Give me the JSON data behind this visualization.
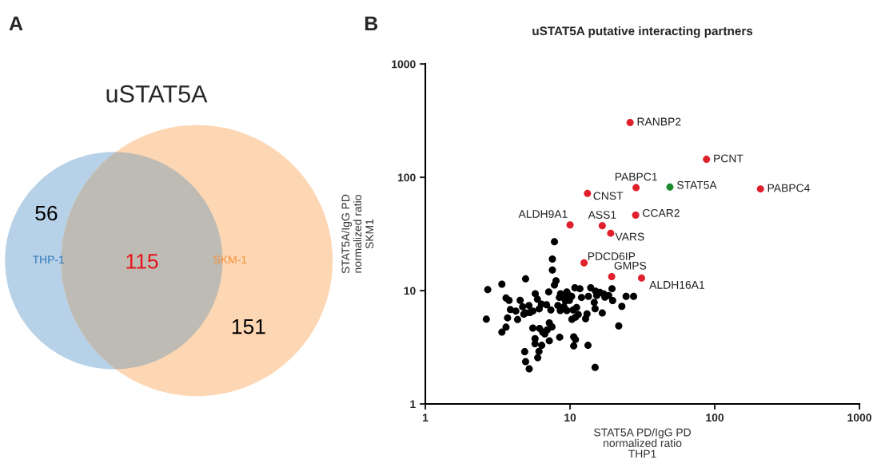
{
  "chart_data": [
    {
      "type": "other",
      "title": "uSTAT5A",
      "categories": [
        "THP-1",
        null,
        "SKM-1"
      ],
      "values": [
        56,
        115,
        151
      ],
      "colors": [
        "#b7d2e8",
        "#bdbbb4",
        "#fdd6b3"
      ],
      "data_labels": true,
      "annotations": [
        "A"
      ]
    },
    {
      "type": "scatter",
      "title": "uSTAT5A putative interacting partners",
      "xlabel": "STAT5A PD/IgG PD\nnormalized ratio\nTHP1",
      "ylabel": "STAT5A/IgG PD\nnormalized ratio\nSKM1",
      "log": "xy",
      "xlim": [
        1,
        1000
      ],
      "ylim": [
        1,
        1000
      ],
      "xticks": [
        1,
        10,
        100,
        1000
      ],
      "yticks": [
        1,
        10,
        100,
        1000
      ],
      "grid": false,
      "marker": "circle",
      "series": [
        {
          "color": "#000000",
          "x": [
            7.8,
            7.55,
            7.55,
            8.0,
            7.8,
            4.93,
            3.38,
            2.7,
            2.64,
            3.38,
            3.61,
            3.7,
            3.61,
            3.79,
            3.87,
            4.22,
            4.34,
            4.52,
            4.7,
            4.79,
            4.93,
            5.2,
            5.27,
            5.53,
            5.75,
            5.95,
            6.12,
            6.34,
            6.88,
            7.12,
            7.37,
            5.53,
            5.73,
            5.73,
            6.37,
            6.1,
            5.98,
            4.86,
            4.93,
            5.22,
            6.16,
            6.47,
            6.69,
            6.95,
            7.19,
            7.5,
            7.19,
            8.48,
            8.24,
            8.44,
            8.6,
            9.08,
            9.3,
            9.5,
            9.9,
            10.25,
            10.8,
            11.7,
            8.56,
            9.08,
            9.5,
            10.5,
            11.1,
            11.4,
            10.9,
            10.3,
            12.8,
            13.1,
            12.0,
            13.4,
            13.9,
            15.0,
            15.3,
            16.1,
            17.1,
            17.4,
            18.5,
            19.5,
            19.7,
            14.9,
            16.7,
            22.8,
            24.4,
            27.5,
            21.7,
            13.3,
            10.6,
            10.9,
            10.6,
            14.9,
            14.7,
            9.6
          ],
          "values": [
            27,
            19,
            15.2,
            12.2,
            11.2,
            12.7,
            11.4,
            10.2,
            5.6,
            4.3,
            4.76,
            5.75,
            8.6,
            8.2,
            6.8,
            6.6,
            5.55,
            8.2,
            7.2,
            6.2,
            6.35,
            7.4,
            6.4,
            6.6,
            9.4,
            8.4,
            6.9,
            7.6,
            7.5,
            9.75,
            6.75,
            4.67,
            3.77,
            3.4,
            3.29,
            2.91,
            2.56,
            2.89,
            2.36,
            2.04,
            4.64,
            4.31,
            4.15,
            4.5,
            5.19,
            4.79,
            3.61,
            3.88,
            7.4,
            8.7,
            9.4,
            8.6,
            8.1,
            9.75,
            8.2,
            8.9,
            10.6,
            10.4,
            6.67,
            7.2,
            6.67,
            6.75,
            7.1,
            6.16,
            5.82,
            5.58,
            5.65,
            6.23,
            8.7,
            8.9,
            10.6,
            9.9,
            9.06,
            9.64,
            9.35,
            8.74,
            9.06,
            10.4,
            8.17,
            6.92,
            6.35,
            7.27,
            8.9,
            8.9,
            4.88,
            3.29,
            3.91,
            3.7,
            3.25,
            2.1,
            7.87,
            9.4
          ]
        },
        {
          "color": "#e0202a",
          "x": [
            26.0,
            87.7,
            28.6,
            207,
            13.2,
            28.4,
            10.0,
            16.7,
            19.1,
            12.5,
            19.4,
            31.2
          ],
          "values": [
            304,
            144,
            81,
            79,
            72,
            46.4,
            38,
            37.4,
            32.1,
            17.6,
            13.3,
            12.9
          ]
        },
        {
          "color": "#1e8a2e",
          "x": [
            49
          ],
          "values": [
            82
          ]
        }
      ],
      "annotations": [
        "B",
        {
          "text": "RANBP2",
          "x": 26.0,
          "y": 304
        },
        {
          "text": "PCNT",
          "x": 87.7,
          "y": 144
        },
        {
          "text": "PABPC1",
          "x": 28.6,
          "y": 81
        },
        {
          "text": "STAT5A",
          "x": 49,
          "y": 82
        },
        {
          "text": "PABPC4",
          "x": 207,
          "y": 79
        },
        {
          "text": "CNST",
          "x": 13.2,
          "y": 72
        },
        {
          "text": "CCAR2",
          "x": 28.4,
          "y": 46.4
        },
        {
          "text": "ALDH9A1",
          "x": 10.0,
          "y": 38
        },
        {
          "text": "ASS1",
          "x": 16.7,
          "y": 37.4
        },
        {
          "text": "VARS",
          "x": 19.1,
          "y": 32.1
        },
        {
          "text": "PDCD6IP",
          "x": 12.5,
          "y": 17.6
        },
        {
          "text": "GMPS",
          "x": 19.4,
          "y": 13.3
        },
        {
          "text": "ALDH16A1",
          "x": 31.2,
          "y": 12.9
        }
      ]
    }
  ]
}
